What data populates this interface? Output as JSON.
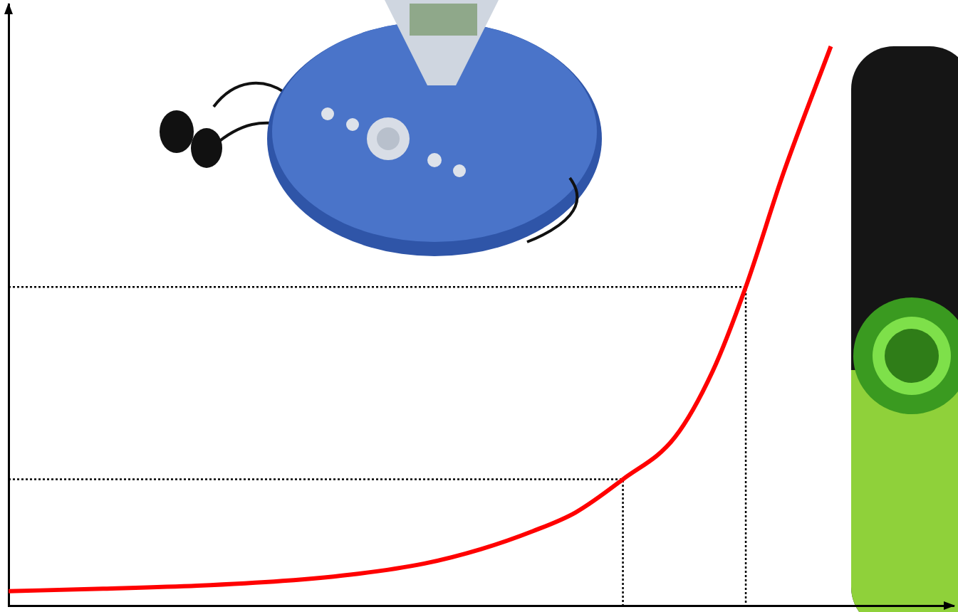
{
  "chart_data": {
    "type": "line",
    "x": [
      0,
      10,
      20,
      29,
      37,
      44,
      50,
      55.5,
      60,
      65,
      70.5,
      74.5,
      78,
      82,
      87
    ],
    "values": [
      2.4,
      2.8,
      3.3,
      4.1,
      5.3,
      7,
      9.4,
      12.4,
      15.5,
      21,
      28,
      39,
      53,
      72,
      93
    ],
    "color": "#ff0000",
    "xlim": [
      0,
      100
    ],
    "ylim": [
      0,
      100
    ],
    "tick_labels": false,
    "grid": false,
    "guides": [
      {
        "x": 65,
        "y": 21
      },
      {
        "x": 78,
        "y": 53
      }
    ]
  }
}
